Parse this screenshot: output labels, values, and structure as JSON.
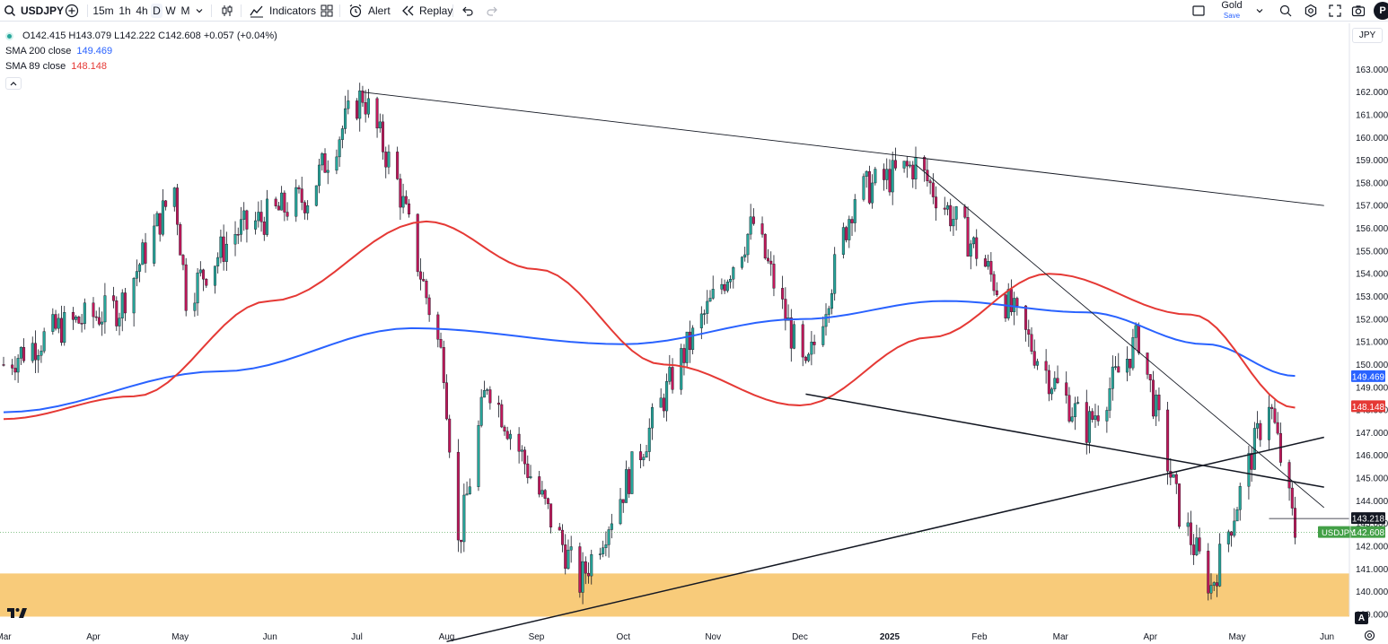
{
  "toolbar": {
    "symbol": "USDJPY",
    "intervals": [
      "15m",
      "1h",
      "4h",
      "D",
      "W",
      "M"
    ],
    "active_interval": "D",
    "indicators_label": "Indicators",
    "alert_label": "Alert",
    "replay_label": "Replay",
    "plan_label": "Gold",
    "plan_sub": "Save",
    "avatar_letter": "P"
  },
  "legend": {
    "ohlc": "O142.415  H143.079  L142.222  C142.608  +0.057 (+0.04%)",
    "sma200_label": "SMA 200 close",
    "sma200_value": "149.469",
    "sma89_label": "SMA 89 close",
    "sma89_value": "148.148"
  },
  "currency": "JPY",
  "colors": {
    "up": "#26a69a",
    "down": "#c2185b",
    "sma200": "#2962ff",
    "sma89": "#e53935",
    "zone": "#f7c56b",
    "last_price": "#43a047"
  },
  "price_labels": {
    "sma200": "149.469",
    "sma89": "148.148",
    "crosshair": "143.218",
    "last_symbol": "USDJPY",
    "last_value": "142.608"
  },
  "chart_data": {
    "type": "candlestick",
    "symbol": "USDJPY",
    "ylim": [
      138.8,
      164.0
    ],
    "y_ticks": [
      139,
      140,
      141,
      142,
      143,
      144,
      145,
      146,
      147,
      148,
      149,
      150,
      151,
      152,
      153,
      154,
      155,
      156,
      157,
      158,
      159,
      160,
      161,
      162,
      163
    ],
    "x_ticks": [
      "Mar",
      "Apr",
      "May",
      "Jun",
      "Jul",
      "Aug",
      "Sep",
      "Oct",
      "Nov",
      "Dec",
      "2025",
      "Feb",
      "Mar",
      "Apr",
      "May",
      "Jun"
    ],
    "price_path": [
      [
        "2024-03-01",
        150.0
      ],
      [
        "2024-03-20",
        151.6
      ],
      [
        "2024-04-10",
        152.5
      ],
      [
        "2024-04-29",
        157.8
      ],
      [
        "2024-05-03",
        153.0
      ],
      [
        "2024-05-20",
        155.8
      ],
      [
        "2024-06-14",
        157.4
      ],
      [
        "2024-06-28",
        160.9
      ],
      [
        "2024-07-03",
        161.9
      ],
      [
        "2024-07-15",
        158.0
      ],
      [
        "2024-07-31",
        150.0
      ],
      [
        "2024-08-05",
        142.0
      ],
      [
        "2024-08-15",
        149.3
      ],
      [
        "2024-09-16",
        140.4
      ],
      [
        "2024-10-01",
        144.5
      ],
      [
        "2024-10-20",
        150.0
      ],
      [
        "2024-11-15",
        156.2
      ],
      [
        "2024-12-03",
        149.5
      ],
      [
        "2024-12-20",
        157.5
      ],
      [
        "2025-01-10",
        158.8
      ],
      [
        "2025-01-31",
        155.0
      ],
      [
        "2025-02-25",
        149.5
      ],
      [
        "2025-03-10",
        147.2
      ],
      [
        "2025-03-28",
        151.2
      ],
      [
        "2025-04-11",
        143.5
      ],
      [
        "2025-04-22",
        140.2
      ],
      [
        "2025-05-12",
        148.5
      ],
      [
        "2025-05-21",
        142.6
      ]
    ],
    "sma_200": [
      [
        "2024-03-01",
        147.9
      ],
      [
        "2024-05-15",
        149.7
      ],
      [
        "2024-07-20",
        151.6
      ],
      [
        "2024-10-01",
        150.9
      ],
      [
        "2024-12-01",
        152.0
      ],
      [
        "2025-01-20",
        152.8
      ],
      [
        "2025-03-10",
        152.3
      ],
      [
        "2025-04-20",
        150.9
      ],
      [
        "2025-05-21",
        149.5
      ]
    ],
    "sma_89": [
      [
        "2024-03-01",
        147.6
      ],
      [
        "2024-04-15",
        148.6
      ],
      [
        "2024-06-01",
        152.8
      ],
      [
        "2024-07-25",
        156.3
      ],
      [
        "2024-09-01",
        154.2
      ],
      [
        "2024-10-15",
        150.0
      ],
      [
        "2024-12-01",
        148.2
      ],
      [
        "2025-01-15",
        151.2
      ],
      [
        "2025-02-25",
        154.0
      ],
      [
        "2025-04-15",
        152.2
      ],
      [
        "2025-05-21",
        148.1
      ]
    ],
    "trendlines": [
      [
        [
          "2024-07-03",
          162.0
        ],
        [
          "2025-05-31",
          157.0
        ]
      ],
      [
        [
          "2025-01-10",
          158.8
        ],
        [
          "2025-05-31",
          143.7
        ]
      ],
      [
        [
          "2024-12-03",
          148.7
        ],
        [
          "2025-05-31",
          144.6
        ]
      ],
      [
        [
          "2024-08-01",
          137.8
        ],
        [
          "2025-05-31",
          146.8
        ]
      ]
    ],
    "support_zone": [
      138.9,
      140.8
    ],
    "last_price": 142.608,
    "crosshair_price": 143.218
  }
}
